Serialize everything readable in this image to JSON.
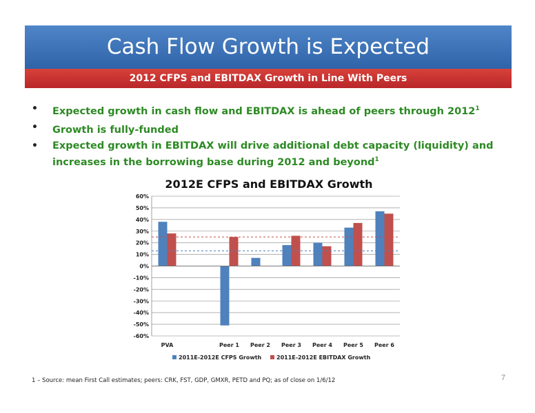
{
  "slide": {
    "title": "Cash Flow Growth is Expected",
    "subtitle": "2012 CFPS and EBITDAX Growth in Line With Peers",
    "bullets": [
      {
        "text": "Expected growth in cash flow and EBITDAX is ahead of peers through 2012",
        "sup": "1"
      },
      {
        "text": "Growth is fully-funded",
        "sup": ""
      },
      {
        "text": "Expected growth in EBITDAX will drive additional debt capacity (liquidity) and increases in the borrowing base during 2012 and beyond",
        "sup": "1"
      }
    ],
    "footnote": "1 – Source: mean First Call estimates; peers: CRK, FST, GDP, GMXR, PETD and PQ; as of close on 1/6/12",
    "page_number": "7",
    "colors": {
      "title_band": "#3a72b8",
      "subtitle_band": "#c9312f",
      "bullet_text": "#2d8a24"
    }
  },
  "chart_data": {
    "type": "bar",
    "title": "2012E CFPS and EBITDAX Growth",
    "categories": [
      "PVA",
      "",
      "Peer 1",
      "Peer 2",
      "Peer 3",
      "Peer 4",
      "Peer 5",
      "Peer 6"
    ],
    "series": [
      {
        "name": "2011E-2012E CFPS Growth",
        "color": "#4f81bd",
        "values": [
          38,
          null,
          -51,
          7,
          18,
          20,
          33,
          47
        ]
      },
      {
        "name": "2011E-2012E EBITDAX Growth",
        "color": "#c0504d",
        "values": [
          28,
          null,
          25,
          null,
          26,
          17,
          37,
          45
        ]
      }
    ],
    "reference_lines": [
      {
        "series": "2011E-2012E CFPS Growth",
        "value": 13,
        "color": "#4f81bd",
        "style": "dashed"
      },
      {
        "series": "2011E-2012E EBITDAX Growth",
        "value": 25,
        "color": "#c0504d",
        "style": "dashed"
      }
    ],
    "ylim": [
      -60,
      60
    ],
    "yticks": [
      "60%",
      "50%",
      "40%",
      "30%",
      "20%",
      "10%",
      "0%",
      "-10%",
      "-20%",
      "-30%",
      "-40%",
      "-50%",
      "-60%"
    ],
    "grid": true,
    "legend": "bottom"
  }
}
